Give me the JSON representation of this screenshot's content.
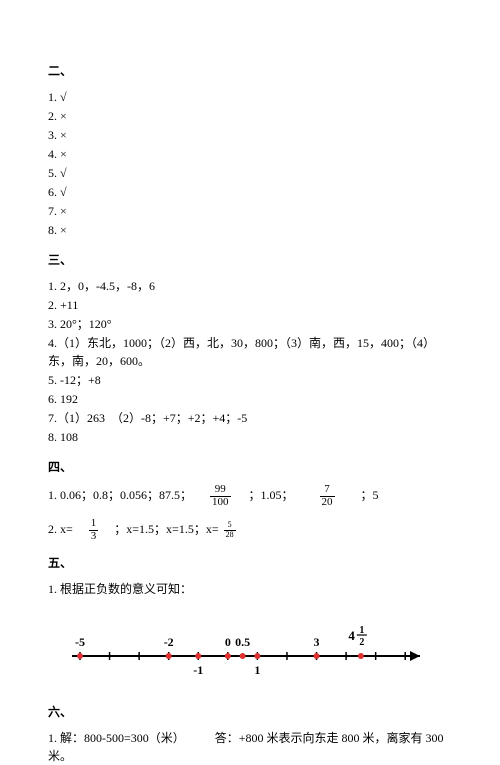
{
  "s2": {
    "title": "二、",
    "items": [
      "1. √",
      "2. ×",
      "3. ×",
      "4. ×",
      "5. √",
      "6. √",
      "7. ×",
      "8. ×"
    ]
  },
  "s3": {
    "title": "三、",
    "l1": "1. 2，0，-4.5，-8，6",
    "l2": "2. +11",
    "l3": "3. 20°；120°",
    "l4": "4.（1）东北，1000；（2）西，北，30，800；（3）南，西，15，400；（4）东，南，20，600。",
    "l5": "5. -12；+8",
    "l6": "6. 192",
    "l7": "7.（1）263　（2）-8；+7；+2；+4；-5",
    "l8": "8. 108"
  },
  "s4": {
    "title": "四、",
    "l1a": "1. 0.06；0.8；0.056；87.5；",
    "f1n": "99",
    "f1d": "100",
    "l1b": "；1.05；",
    "f2n": "7",
    "f2d": "20",
    "l1c": "；5",
    "l2a": "2. x=",
    "f3n": "1",
    "f3d": "3",
    "l2b": "；x=1.5；x=1.5；x=",
    "f4n": "5",
    "f4d": "28"
  },
  "s5": {
    "title": "五、",
    "l1": "1. 根据正负数的意义可知：",
    "numberline": {
      "ticks": [
        -5,
        -4,
        -3,
        -2,
        -1,
        0,
        1,
        2,
        3,
        4,
        5,
        6
      ],
      "top_labels": [
        {
          "x": -5,
          "text": "-5"
        },
        {
          "x": -2,
          "text": "-2"
        },
        {
          "x": 0,
          "text": "0"
        },
        {
          "x": 0.5,
          "text": "0.5"
        },
        {
          "x": 3,
          "text": "3"
        },
        {
          "x": 4.5,
          "text": "4",
          "frac_n": "1",
          "frac_d": "2"
        }
      ],
      "bottom_labels": [
        {
          "x": -1,
          "text": "-1"
        },
        {
          "x": 1,
          "text": "1"
        }
      ],
      "red_points": [
        -5,
        -2,
        -1,
        0,
        0.5,
        1,
        3,
        4.5
      ],
      "axis_color": "#000000",
      "point_color": "#e03030",
      "text_color": "#000000"
    }
  },
  "s6": {
    "title": "六、",
    "l1": "1. 解：800-500=300（米）　　　答：+800 米表示向东走 800 米，离家有 300 米。"
  }
}
